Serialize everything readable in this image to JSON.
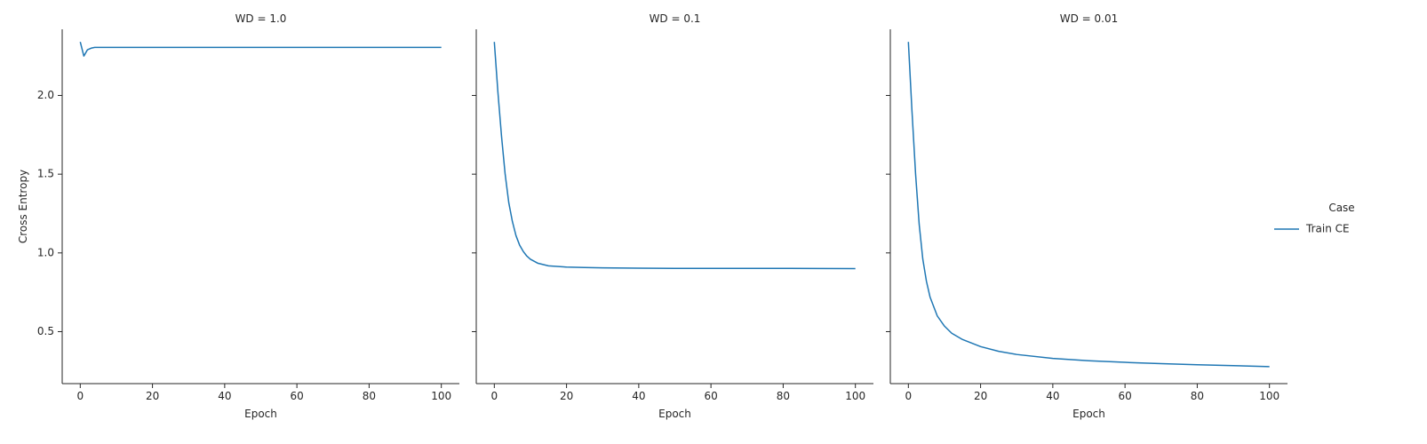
{
  "chart_data": {
    "type": "line",
    "ylabel": "Cross Entropy",
    "xlabel": "Epoch",
    "xlim": [
      -5,
      105
    ],
    "ylim": [
      0.17,
      2.42
    ],
    "xticks": [
      0,
      20,
      40,
      60,
      80,
      100
    ],
    "yticks": [
      0.5,
      1.0,
      1.5,
      2.0
    ],
    "ytick_labels": [
      "0.5",
      "1.0",
      "1.5",
      "2.0"
    ],
    "sharey": true,
    "grid": false,
    "line_color": "#1f77b4",
    "legend": {
      "title": "Case",
      "placement": "right",
      "entries": [
        "Train CE"
      ]
    },
    "panels": [
      {
        "title": "WD = 1.0",
        "series": [
          {
            "name": "Train CE",
            "x": [
              0,
              1,
              2,
              3,
              4,
              5,
              10,
              20,
              40,
              60,
              80,
              100
            ],
            "y": [
              2.34,
              2.25,
              2.29,
              2.3,
              2.305,
              2.305,
              2.305,
              2.305,
              2.305,
              2.305,
              2.305,
              2.305
            ]
          }
        ]
      },
      {
        "title": "WD = 0.1",
        "series": [
          {
            "name": "Train CE",
            "x": [
              0,
              1,
              2,
              3,
              4,
              5,
              6,
              7,
              8,
              9,
              10,
              12,
              15,
              20,
              25,
              30,
              40,
              50,
              60,
              70,
              80,
              90,
              100
            ],
            "y": [
              2.34,
              2.02,
              1.74,
              1.5,
              1.32,
              1.2,
              1.11,
              1.05,
              1.01,
              0.98,
              0.96,
              0.935,
              0.918,
              0.91,
              0.907,
              0.905,
              0.903,
              0.902,
              0.902,
              0.902,
              0.902,
              0.901,
              0.9
            ]
          }
        ]
      },
      {
        "title": "WD = 0.01",
        "series": [
          {
            "name": "Train CE",
            "x": [
              0,
              1,
              2,
              3,
              4,
              5,
              6,
              7,
              8,
              10,
              12,
              15,
              20,
              25,
              30,
              40,
              50,
              60,
              70,
              80,
              90,
              100
            ],
            "y": [
              2.34,
              1.9,
              1.5,
              1.18,
              0.96,
              0.82,
              0.72,
              0.66,
              0.6,
              0.535,
              0.49,
              0.45,
              0.405,
              0.375,
              0.355,
              0.33,
              0.315,
              0.305,
              0.297,
              0.29,
              0.284,
              0.278
            ]
          }
        ]
      }
    ]
  }
}
